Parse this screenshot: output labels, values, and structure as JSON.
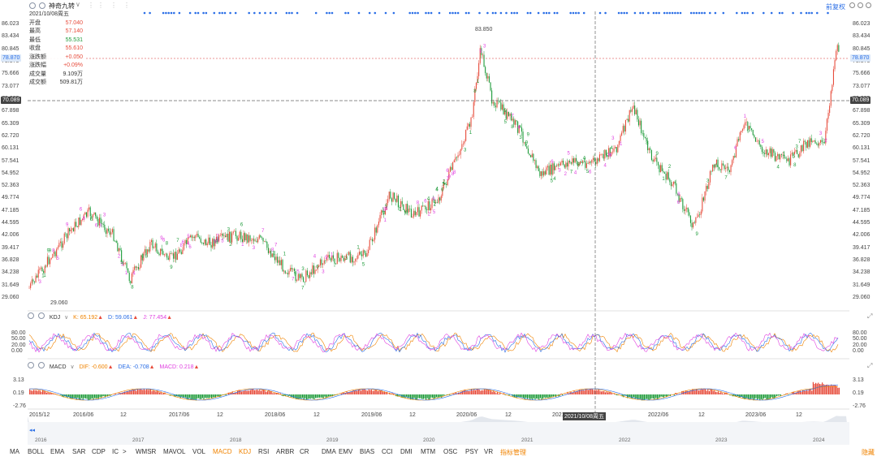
{
  "header": {
    "stock_name": "神奇九转",
    "stock_caret": "∨",
    "adjust_label": "前复权",
    "date_label": "2021/10/08周五"
  },
  "info": [
    {
      "label": "开盘",
      "value": "57.040",
      "cls": "up"
    },
    {
      "label": "最高",
      "value": "57.140",
      "cls": "up"
    },
    {
      "label": "最低",
      "value": "55.531",
      "cls": "dn"
    },
    {
      "label": "收盘",
      "value": "55.610",
      "cls": "up"
    },
    {
      "label": "涨跌额",
      "value": "+0.050",
      "cls": "up"
    },
    {
      "label": "涨跌幅",
      "value": "+0.09%",
      "cls": "up"
    },
    {
      "label": "成交量",
      "value": "9.109万",
      "cls": "lbl"
    },
    {
      "label": "成交额",
      "value": "509.81万",
      "cls": "lbl"
    }
  ],
  "price_axis": [
    "86.023",
    "83.434",
    "80.845",
    "78.870",
    "75.666",
    "73.077",
    "70.089",
    "67.898",
    "65.309",
    "62.720",
    "60.131",
    "57.541",
    "54.952",
    "52.363",
    "49.774",
    "47.185",
    "44.595",
    "42.006",
    "39.417",
    "36.828",
    "34.238",
    "31.649",
    "29.060"
  ],
  "price_axis_right": [
    "86.023",
    "83.434",
    "80.845",
    "78.870",
    "75.666",
    "73.077",
    "70.089",
    "67.898",
    "65.309",
    "62.720",
    "60.131",
    "57.541",
    "54.952",
    "52.363",
    "49.774",
    "47.185",
    "44.595",
    "42.006",
    "39.417",
    "36.828",
    "34.238",
    "31.649",
    "29.060"
  ],
  "current_price_tag": "78.870",
  "crosshair_price_tag": "70.089",
  "annotations": {
    "high": "83.850",
    "low": "29.060",
    "seven": "7"
  },
  "kdj": {
    "name": "KDJ",
    "k_label": "K: 65.192",
    "d_label": "D: 59.061",
    "j_label": "J: 77.454",
    "axis": [
      "80.00",
      "50.00",
      "20.00",
      "0.00"
    ],
    "color_k": "#f08300",
    "color_d": "#2a6ee6",
    "color_j": "#e040e0"
  },
  "macd": {
    "name": "MACD",
    "dif_label": "DIF: -0.600",
    "dea_label": "DEA: -0.708",
    "macd_label": "MACD: 0.218",
    "axis": [
      "3.13",
      "0.19",
      "-2.76"
    ]
  },
  "x_axis": [
    "2015/12",
    "2016/06",
    "12",
    "2017/06",
    "12",
    "2018/06",
    "12",
    "2019/06",
    "12",
    "2020/06",
    "12",
    "2021",
    "2021/10/08周五",
    "2022/06",
    "12",
    "2023/06",
    "12"
  ],
  "navigator": [
    "2016",
    "2017",
    "2018",
    "2019",
    "2020",
    "2021",
    "2022",
    "2023",
    "2024"
  ],
  "tabs": [
    "MA",
    "BOLL",
    "EMA",
    "SAR",
    "CDP",
    "IC",
    "WMSR",
    "MAVOL",
    "VOL",
    "MACD",
    "KDJ",
    "RSI",
    "ARBR",
    "CR",
    "DMA",
    "EMV",
    "BIAS",
    "CCI",
    "DMI",
    "MTM",
    "OSC",
    "PSY",
    "VR",
    "指标管理"
  ],
  "tab_arrow": ">",
  "hide_label": "隐藏",
  "colors": {
    "up": "#e74c3c",
    "down": "#1e9b3a",
    "accent": "#2a6ee6",
    "active": "#f08300",
    "magenta": "#e040e0"
  }
}
